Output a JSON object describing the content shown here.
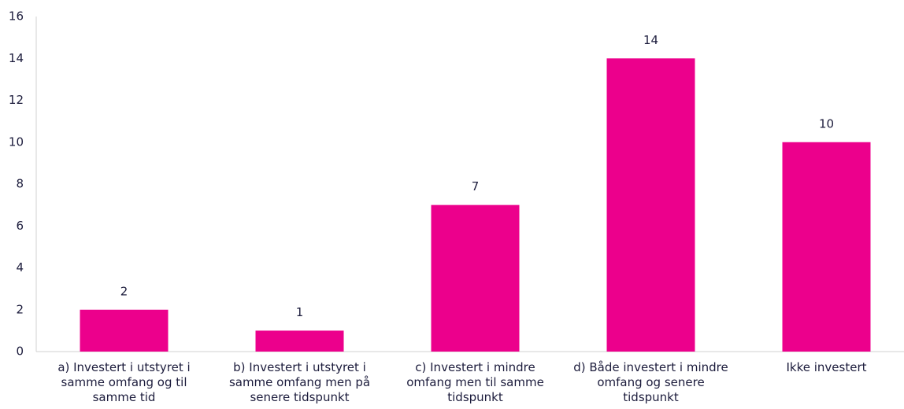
{
  "chart_data": {
    "type": "bar",
    "categories": [
      "a) Investert i utstyret i samme omfang og til samme tid",
      "b) Investert i utstyret i samme omfang men på senere tidspunkt",
      "c) Investert i mindre omfang men til samme tidspunkt",
      "d) Både investert i mindre omfang og senere tidspunkt",
      "Ikke investert"
    ],
    "values": [
      2,
      1,
      7,
      14,
      10
    ],
    "color": "#ec008c",
    "ylim": [
      0,
      16
    ],
    "yticks": [
      0,
      2,
      4,
      6,
      8,
      10,
      12,
      14,
      16
    ],
    "grid": false
  }
}
